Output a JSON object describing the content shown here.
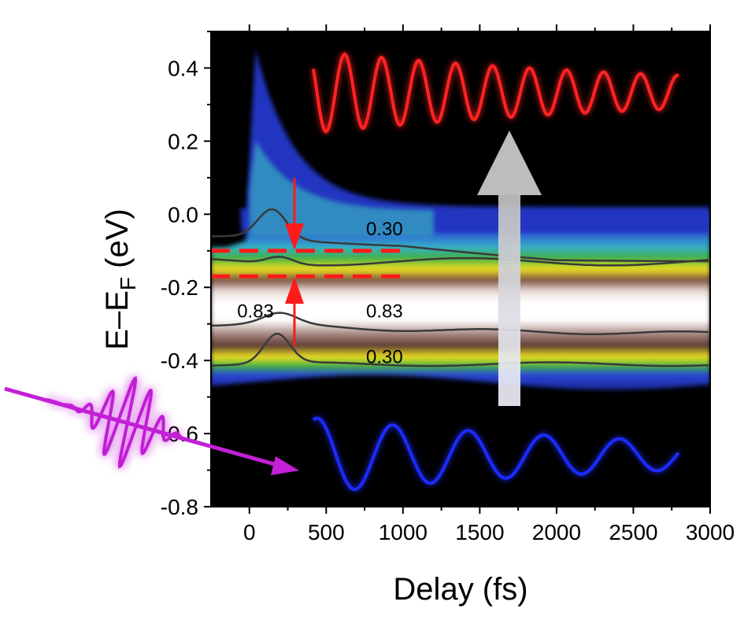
{
  "chart_data": {
    "type": "heatmap",
    "title": "",
    "xlabel": "Delay (fs)",
    "ylabel_parts": [
      "E–E",
      "F",
      " (eV)"
    ],
    "xlim": [
      -250,
      3000
    ],
    "ylim": [
      -0.8,
      0.5
    ],
    "x_ticks": [
      0,
      500,
      1000,
      1500,
      2000,
      2500,
      3000
    ],
    "x_tick_labels": [
      "0",
      "500",
      "1000",
      "1500",
      "2000",
      "2500",
      "3000"
    ],
    "y_ticks": [
      0.4,
      0.2,
      0.0,
      -0.2,
      -0.4,
      -0.6,
      -0.8
    ],
    "y_tick_labels": [
      "0.4",
      "0.2",
      "0.0",
      "-0.2",
      "-0.4",
      "-0.6",
      "-0.8"
    ],
    "contour_labels": [
      {
        "text": "0.30",
        "x": 760,
        "y": -0.04
      },
      {
        "text": "0.83",
        "x": 760,
        "y": -0.265
      },
      {
        "text": "0.30",
        "x": 760,
        "y": -0.39
      },
      {
        "text": "0.83",
        "x": -80,
        "y": -0.265
      }
    ],
    "dashed_levels": [
      {
        "y": -0.1,
        "x_range": [
          -250,
          1000
        ]
      },
      {
        "y": -0.17,
        "x_range": [
          -250,
          1000
        ]
      }
    ],
    "colors": {
      "background": "#000000",
      "high_intensity": "#ffffff",
      "mid_intensity": "#5a3a32",
      "yellow_band": "#f0e020",
      "green_band": "#3aa832",
      "blue_band": "#1f36c8",
      "upper_oscillation": "#ff1a1a",
      "lower_oscillation": "#1a2cff",
      "pump_pulse": "#c21fd6",
      "markers": "#ff1a1a",
      "arrow": "#c8c8c8"
    }
  }
}
